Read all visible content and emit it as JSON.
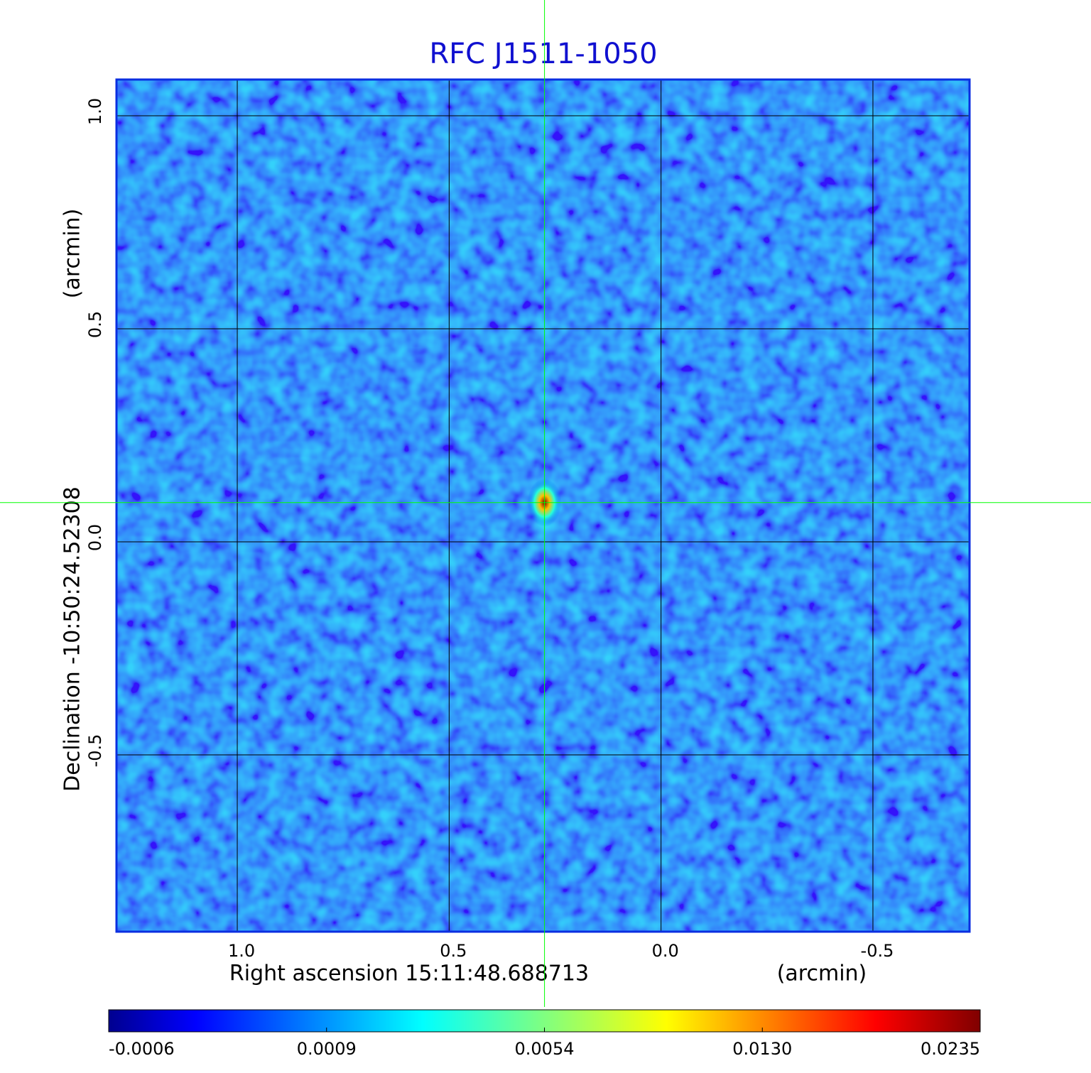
{
  "chart_data": {
    "type": "image",
    "title": "RFC J1511-1050",
    "x_label": "Right ascension  15:11:48.688713",
    "x_unit": "(arcmin)",
    "y_label": "Declination  -10:50:24.52308",
    "y_unit": "(arcmin)",
    "xlim": [
      1.285,
      -0.728
    ],
    "ylim": [
      -0.915,
      1.085
    ],
    "xticks": [
      {
        "value": 1,
        "label": "1.0"
      },
      0.5,
      {
        "value": 0,
        "label": "0.0"
      },
      -0.5
    ],
    "yticks": [
      -0.5,
      {
        "value": 0,
        "label": "0.0"
      },
      0.5,
      {
        "value": 1,
        "label": "1.0"
      }
    ],
    "grid": true,
    "colormap": "jet",
    "colorbar": {
      "ticks": [
        -0.0006,
        0.0009,
        0.0054,
        {
          "value": 0.013,
          "label": "0.0130"
        },
        0.0235
      ]
    },
    "source": {
      "x": 0.275,
      "y": 0.092,
      "peak": 0.0235
    },
    "crosshair": {
      "x": 0.275,
      "y": 0.092,
      "color": "#00ff00"
    }
  }
}
